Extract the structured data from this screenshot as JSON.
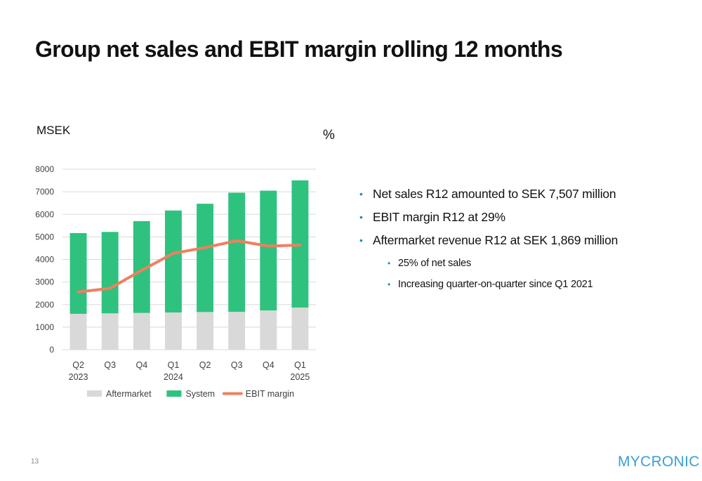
{
  "page": {
    "title": "Group net sales and EBIT margin rolling 12 months",
    "page_number": "13",
    "logo": "MYCRONIC"
  },
  "bullets": [
    {
      "text": "Net sales R12 amounted to SEK 7,507 million",
      "level": 1
    },
    {
      "text": "EBIT margin R12 at 29%",
      "level": 1
    },
    {
      "text": "Aftermarket revenue R12 at SEK 1,869 million",
      "level": 1
    },
    {
      "text": "25% of net sales",
      "level": 2
    },
    {
      "text": "Increasing quarter-on-quarter since Q1 2021",
      "level": 2
    }
  ],
  "chart_data": {
    "type": "bar",
    "stacked": true,
    "left_axis_title": "MSEK",
    "right_axis_title": "%",
    "categories": [
      {
        "q": "Q2",
        "year": "2023"
      },
      {
        "q": "Q3",
        "year": ""
      },
      {
        "q": "Q4",
        "year": ""
      },
      {
        "q": "Q1",
        "year": "2024"
      },
      {
        "q": "Q2",
        "year": ""
      },
      {
        "q": "Q3",
        "year": ""
      },
      {
        "q": "Q4",
        "year": ""
      },
      {
        "q": "Q1",
        "year": "2025"
      }
    ],
    "series": [
      {
        "name": "Aftermarket",
        "type": "bar",
        "color": "#d9d9d9",
        "values": [
          1590,
          1610,
          1630,
          1650,
          1670,
          1680,
          1740,
          1869
        ]
      },
      {
        "name": "System",
        "type": "bar",
        "color": "#2ec27e",
        "values": [
          3580,
          3610,
          4070,
          4520,
          4800,
          5280,
          5310,
          5638
        ]
      },
      {
        "name": "EBIT margin",
        "type": "line",
        "axis": "right",
        "color": "#f07f5f",
        "values": [
          16,
          17,
          22,
          26.7,
          28.3,
          30.2,
          28.7,
          29
        ]
      }
    ],
    "ylim_left": [
      0,
      8000
    ],
    "yticks_left": [
      0,
      1000,
      2000,
      3000,
      4000,
      5000,
      6000,
      7000,
      8000
    ],
    "ylim_right": [
      0,
      50
    ],
    "yticks_right": [
      0,
      5,
      10,
      15,
      20,
      25,
      30,
      35,
      40,
      45,
      50
    ],
    "grid": true,
    "legend_position": "bottom"
  }
}
